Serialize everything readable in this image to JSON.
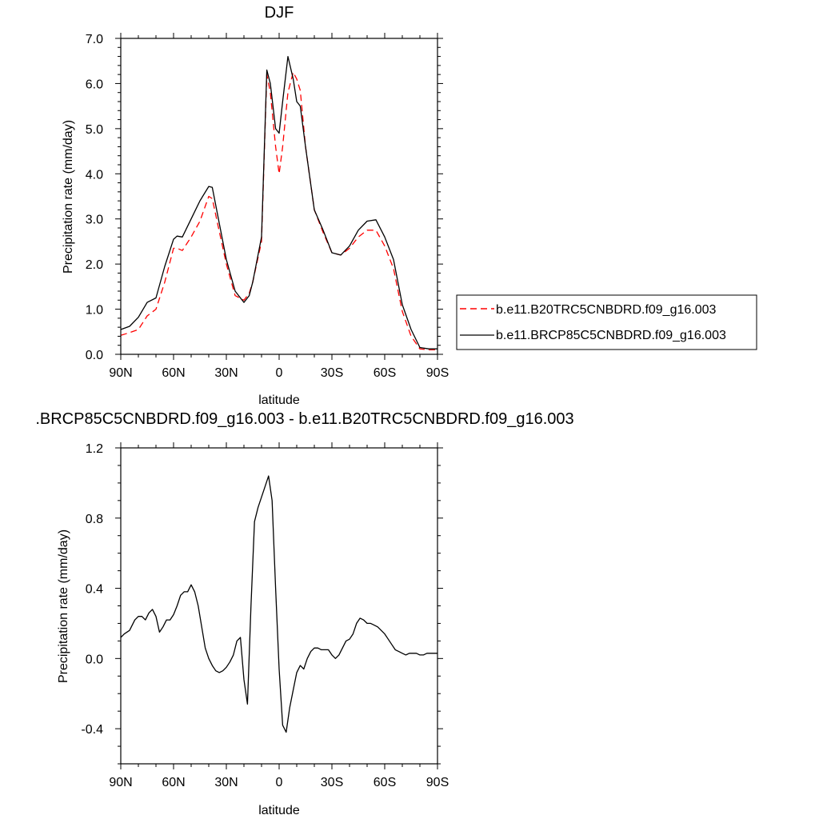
{
  "chart_data": [
    {
      "type": "line",
      "title": "DJF",
      "xlabel": "latitude",
      "ylabel": "Precipitation rate (mm/day)",
      "xlim": [
        90,
        -90
      ],
      "ylim": [
        0,
        7
      ],
      "x_ticks": [
        90,
        60,
        30,
        0,
        -30,
        -60,
        -90
      ],
      "x_tick_labels": [
        "90N",
        "60N",
        "30N",
        "0",
        "30S",
        "60S",
        "90S"
      ],
      "y_ticks": [
        0,
        1,
        2,
        3,
        4,
        5,
        6,
        7
      ],
      "y_tick_labels": [
        "0.0",
        "1.0",
        "2.0",
        "3.0",
        "4.0",
        "5.0",
        "6.0",
        "7.0"
      ],
      "legend_position": "right",
      "series": [
        {
          "name": "b.e11.B20TRC5CNBDRD.f09_g16.003",
          "color": "#ff0000",
          "dash": "dashed",
          "x": [
            90,
            85,
            80,
            75,
            70,
            65,
            60,
            58,
            55,
            50,
            45,
            40,
            38,
            35,
            30,
            25,
            20,
            17,
            15,
            10,
            7,
            5,
            2,
            0,
            -2,
            -5,
            -8,
            -10,
            -12,
            -15,
            -20,
            -25,
            -30,
            -35,
            -40,
            -45,
            -50,
            -55,
            -60,
            -65,
            -70,
            -75,
            -80,
            -85,
            -90
          ],
          "y": [
            0.42,
            0.48,
            0.55,
            0.85,
            1.0,
            1.6,
            2.35,
            2.35,
            2.3,
            2.6,
            2.95,
            3.5,
            3.45,
            2.9,
            2.0,
            1.3,
            1.2,
            1.35,
            1.6,
            2.5,
            6.2,
            5.8,
            4.6,
            4.0,
            4.6,
            5.8,
            6.25,
            6.1,
            5.85,
            4.6,
            3.2,
            2.7,
            2.25,
            2.2,
            2.35,
            2.6,
            2.75,
            2.75,
            2.4,
            1.9,
            0.95,
            0.4,
            0.12,
            0.1,
            0.1
          ]
        },
        {
          "name": "b.e11.BRCP85C5CNBDRD.f09_g16.003",
          "color": "#000000",
          "dash": "solid",
          "x": [
            90,
            85,
            80,
            75,
            70,
            65,
            60,
            58,
            55,
            50,
            45,
            40,
            38,
            35,
            30,
            25,
            20,
            17,
            15,
            10,
            7,
            5,
            2,
            0,
            -2,
            -5,
            -8,
            -10,
            -12,
            -15,
            -20,
            -25,
            -30,
            -35,
            -40,
            -45,
            -50,
            -55,
            -60,
            -65,
            -70,
            -75,
            -80,
            -85,
            -90
          ],
          "y": [
            0.55,
            0.62,
            0.82,
            1.15,
            1.25,
            1.95,
            2.55,
            2.62,
            2.6,
            3.0,
            3.4,
            3.72,
            3.7,
            3.1,
            2.1,
            1.4,
            1.15,
            1.3,
            1.6,
            2.6,
            6.3,
            6.0,
            5.0,
            4.9,
            5.6,
            6.6,
            6.1,
            5.6,
            5.5,
            4.6,
            3.2,
            2.75,
            2.25,
            2.2,
            2.4,
            2.75,
            2.95,
            2.98,
            2.6,
            2.1,
            1.1,
            0.55,
            0.15,
            0.12,
            0.12
          ]
        }
      ]
    },
    {
      "type": "line",
      "title": ".BRCP85C5CNBDRD.f09_g16.003 - b.e11.B20TRC5CNBDRD.f09_g16.003",
      "xlabel": "latitude",
      "ylabel": "Precipitation rate (mm/day)",
      "xlim": [
        90,
        -90
      ],
      "ylim": [
        -0.6,
        1.2
      ],
      "x_ticks": [
        90,
        60,
        30,
        0,
        -30,
        -60,
        -90
      ],
      "x_tick_labels": [
        "90N",
        "60N",
        "30N",
        "0",
        "30S",
        "60S",
        "90S"
      ],
      "y_ticks": [
        -0.4,
        0,
        0.4,
        0.8,
        1.2
      ],
      "y_tick_labels": [
        "-0.4",
        "0.0",
        "0.4",
        "0.8",
        "1.2"
      ],
      "series": [
        {
          "color": "#000000",
          "dash": "solid",
          "x": [
            90,
            88,
            85,
            82,
            80,
            78,
            76,
            74,
            72,
            70,
            68,
            66,
            64,
            62,
            60,
            58,
            56,
            54,
            52,
            50,
            48,
            46,
            44,
            42,
            40,
            38,
            36,
            34,
            32,
            30,
            28,
            26,
            24,
            22,
            20,
            18,
            16,
            14,
            12,
            10,
            8,
            6,
            4,
            2,
            0,
            -2,
            -4,
            -6,
            -8,
            -10,
            -12,
            -14,
            -16,
            -18,
            -20,
            -22,
            -24,
            -26,
            -28,
            -30,
            -32,
            -34,
            -36,
            -38,
            -40,
            -42,
            -44,
            -46,
            -48,
            -50,
            -52,
            -54,
            -56,
            -58,
            -60,
            -62,
            -64,
            -66,
            -68,
            -70,
            -72,
            -74,
            -76,
            -78,
            -80,
            -82,
            -84,
            -86,
            -88,
            -90
          ],
          "y": [
            0.12,
            0.14,
            0.16,
            0.22,
            0.24,
            0.24,
            0.22,
            0.26,
            0.28,
            0.24,
            0.15,
            0.18,
            0.22,
            0.22,
            0.25,
            0.3,
            0.36,
            0.38,
            0.38,
            0.42,
            0.38,
            0.3,
            0.18,
            0.06,
            0.0,
            -0.04,
            -0.07,
            -0.08,
            -0.07,
            -0.05,
            -0.02,
            0.02,
            0.1,
            0.12,
            -0.12,
            -0.26,
            0.3,
            0.78,
            0.86,
            0.92,
            0.98,
            1.04,
            0.9,
            0.4,
            -0.06,
            -0.38,
            -0.42,
            -0.28,
            -0.18,
            -0.08,
            -0.04,
            -0.06,
            0.0,
            0.04,
            0.06,
            0.06,
            0.05,
            0.05,
            0.05,
            0.02,
            0.0,
            0.02,
            0.06,
            0.1,
            0.11,
            0.14,
            0.2,
            0.23,
            0.22,
            0.2,
            0.2,
            0.19,
            0.18,
            0.16,
            0.14,
            0.11,
            0.08,
            0.05,
            0.04,
            0.03,
            0.02,
            0.03,
            0.03,
            0.03,
            0.02,
            0.02,
            0.03,
            0.03,
            0.03,
            0.03
          ]
        }
      ]
    }
  ]
}
